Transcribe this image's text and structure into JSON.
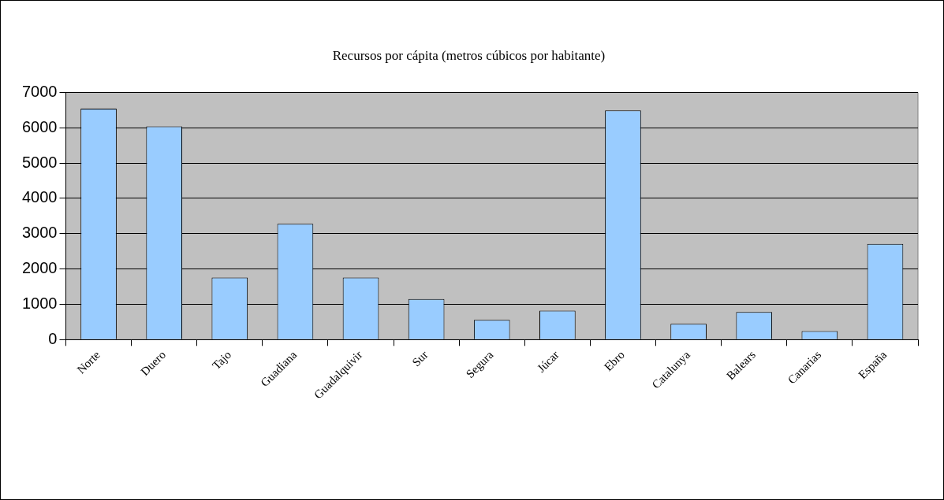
{
  "chart_data": {
    "type": "bar",
    "title": "Recursos por cápita (metros cúbicos por habitante)",
    "categories": [
      "Norte",
      "Duero",
      "Tajo",
      "Guadiana",
      "Guadalquivir",
      "Sur",
      "Segura",
      "Júcar",
      "Ebro",
      "Catalunya",
      "Balears",
      "Canarias",
      "España"
    ],
    "values": [
      6540,
      6040,
      1760,
      3280,
      1760,
      1150,
      560,
      820,
      6490,
      450,
      780,
      240,
      2710
    ],
    "color": "#99ccff",
    "ylim": [
      0,
      7000
    ],
    "yticks": [
      0,
      1000,
      2000,
      3000,
      4000,
      5000,
      6000,
      7000
    ],
    "grid": "y",
    "legend": false
  }
}
